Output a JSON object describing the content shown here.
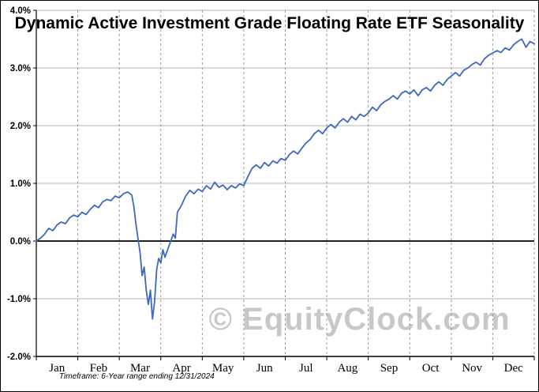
{
  "title": "Dynamic Active Investment Grade Floating Rate ETF Seasonality",
  "watermark": "© EquityClock.com",
  "footnote": "Timeframe: 6-Year range ending 12/31/2024",
  "colors": {
    "line": "#3E68C0",
    "grid": "#b3b3b3",
    "dashed_grid": "#999999",
    "axis": "#000000",
    "watermark": "#c8c8c8"
  },
  "chart_data": {
    "type": "line",
    "title": "Dynamic Active Investment Grade Floating Rate ETF Seasonality",
    "xlabel": "",
    "ylabel": "",
    "ylim": [
      -2.0,
      4.0
    ],
    "grid": true,
    "legend": false,
    "x_categories": [
      "Jan",
      "Feb",
      "Mar",
      "Apr",
      "May",
      "Jun",
      "Jul",
      "Aug",
      "Sep",
      "Oct",
      "Nov",
      "Dec"
    ],
    "y_ticks": [
      {
        "value": 4.0,
        "label": "4.0%"
      },
      {
        "value": 3.0,
        "label": "3.0%"
      },
      {
        "value": 2.0,
        "label": "2.0%"
      },
      {
        "value": 1.0,
        "label": "1.0%"
      },
      {
        "value": 0.0,
        "label": "0.0%"
      },
      {
        "value": -1.0,
        "label": "-1.0%"
      },
      {
        "value": -2.0,
        "label": "-2.0%"
      }
    ],
    "series": [
      {
        "name": "seasonality",
        "points": [
          [
            0.0,
            0.0
          ],
          [
            0.1,
            0.05
          ],
          [
            0.2,
            0.12
          ],
          [
            0.3,
            0.22
          ],
          [
            0.4,
            0.18
          ],
          [
            0.5,
            0.28
          ],
          [
            0.6,
            0.33
          ],
          [
            0.7,
            0.3
          ],
          [
            0.8,
            0.4
          ],
          [
            0.9,
            0.45
          ],
          [
            1.0,
            0.42
          ],
          [
            1.1,
            0.5
          ],
          [
            1.2,
            0.46
          ],
          [
            1.3,
            0.55
          ],
          [
            1.4,
            0.62
          ],
          [
            1.5,
            0.58
          ],
          [
            1.6,
            0.68
          ],
          [
            1.7,
            0.72
          ],
          [
            1.8,
            0.7
          ],
          [
            1.9,
            0.78
          ],
          [
            2.0,
            0.75
          ],
          [
            2.1,
            0.82
          ],
          [
            2.2,
            0.85
          ],
          [
            2.3,
            0.8
          ],
          [
            2.35,
            0.6
          ],
          [
            2.4,
            0.3
          ],
          [
            2.45,
            0.05
          ],
          [
            2.5,
            -0.2
          ],
          [
            2.55,
            -0.6
          ],
          [
            2.6,
            -0.45
          ],
          [
            2.65,
            -0.85
          ],
          [
            2.7,
            -1.1
          ],
          [
            2.75,
            -0.85
          ],
          [
            2.8,
            -1.35
          ],
          [
            2.85,
            -1.05
          ],
          [
            2.9,
            -0.5
          ],
          [
            2.95,
            -0.3
          ],
          [
            3.0,
            -0.38
          ],
          [
            3.05,
            -0.15
          ],
          [
            3.1,
            -0.28
          ],
          [
            3.2,
            -0.08
          ],
          [
            3.3,
            0.12
          ],
          [
            3.35,
            0.05
          ],
          [
            3.4,
            0.5
          ],
          [
            3.5,
            0.62
          ],
          [
            3.6,
            0.78
          ],
          [
            3.7,
            0.88
          ],
          [
            3.8,
            0.82
          ],
          [
            3.9,
            0.9
          ],
          [
            4.0,
            0.86
          ],
          [
            4.1,
            0.96
          ],
          [
            4.2,
            0.9
          ],
          [
            4.3,
            1.02
          ],
          [
            4.4,
            0.93
          ],
          [
            4.5,
            0.97
          ],
          [
            4.6,
            0.89
          ],
          [
            4.7,
            0.96
          ],
          [
            4.8,
            0.92
          ],
          [
            4.9,
            0.99
          ],
          [
            5.0,
            0.96
          ],
          [
            5.1,
            1.12
          ],
          [
            5.2,
            1.26
          ],
          [
            5.3,
            1.32
          ],
          [
            5.4,
            1.26
          ],
          [
            5.5,
            1.36
          ],
          [
            5.6,
            1.3
          ],
          [
            5.7,
            1.39
          ],
          [
            5.8,
            1.35
          ],
          [
            5.9,
            1.43
          ],
          [
            6.0,
            1.4
          ],
          [
            6.1,
            1.5
          ],
          [
            6.2,
            1.56
          ],
          [
            6.3,
            1.51
          ],
          [
            6.4,
            1.61
          ],
          [
            6.5,
            1.7
          ],
          [
            6.6,
            1.76
          ],
          [
            6.7,
            1.86
          ],
          [
            6.8,
            1.92
          ],
          [
            6.9,
            1.86
          ],
          [
            7.0,
            1.96
          ],
          [
            7.1,
            2.02
          ],
          [
            7.2,
            1.96
          ],
          [
            7.3,
            2.06
          ],
          [
            7.4,
            2.12
          ],
          [
            7.5,
            2.06
          ],
          [
            7.6,
            2.16
          ],
          [
            7.7,
            2.1
          ],
          [
            7.8,
            2.2
          ],
          [
            7.9,
            2.16
          ],
          [
            8.0,
            2.22
          ],
          [
            8.1,
            2.32
          ],
          [
            8.2,
            2.26
          ],
          [
            8.3,
            2.36
          ],
          [
            8.4,
            2.42
          ],
          [
            8.5,
            2.46
          ],
          [
            8.6,
            2.52
          ],
          [
            8.7,
            2.46
          ],
          [
            8.8,
            2.56
          ],
          [
            8.9,
            2.6
          ],
          [
            9.0,
            2.55
          ],
          [
            9.1,
            2.62
          ],
          [
            9.2,
            2.52
          ],
          [
            9.3,
            2.62
          ],
          [
            9.4,
            2.66
          ],
          [
            9.5,
            2.6
          ],
          [
            9.6,
            2.7
          ],
          [
            9.7,
            2.76
          ],
          [
            9.8,
            2.7
          ],
          [
            9.9,
            2.8
          ],
          [
            10.0,
            2.86
          ],
          [
            10.1,
            2.92
          ],
          [
            10.2,
            2.86
          ],
          [
            10.3,
            2.96
          ],
          [
            10.4,
            3.0
          ],
          [
            10.5,
            3.06
          ],
          [
            10.6,
            3.1
          ],
          [
            10.7,
            3.05
          ],
          [
            10.8,
            3.16
          ],
          [
            10.9,
            3.22
          ],
          [
            11.0,
            3.26
          ],
          [
            11.1,
            3.3
          ],
          [
            11.2,
            3.27
          ],
          [
            11.3,
            3.35
          ],
          [
            11.4,
            3.31
          ],
          [
            11.5,
            3.4
          ],
          [
            11.6,
            3.46
          ],
          [
            11.7,
            3.5
          ],
          [
            11.8,
            3.36
          ],
          [
            11.9,
            3.46
          ],
          [
            12.0,
            3.42
          ]
        ]
      }
    ]
  }
}
